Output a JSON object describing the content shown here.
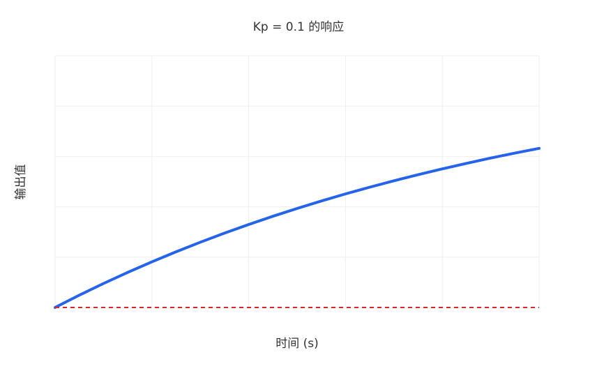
{
  "chart_data": {
    "type": "line",
    "title": "Kp = 0.1 的响应",
    "xlabel": "时间 (s)",
    "ylabel": "输出值",
    "xlim": [
      0,
      5
    ],
    "ylim": [
      0,
      0.5
    ],
    "grid": true,
    "series": [
      {
        "color": "#2563eb",
        "style": "solid",
        "x": [
          0,
          0.25,
          0.5,
          0.75,
          1.0,
          1.25,
          1.5,
          1.75,
          2.0,
          2.25,
          2.5,
          2.75,
          3.0,
          3.25,
          3.5,
          3.75,
          4.0,
          4.25,
          4.5,
          4.75,
          5.0
        ],
        "y": [
          0,
          0.0244,
          0.0476,
          0.0697,
          0.0906,
          0.1106,
          0.1296,
          0.1476,
          0.1648,
          0.1812,
          0.1967,
          0.2115,
          0.2256,
          0.2389,
          0.2517,
          0.2638,
          0.2753,
          0.2863,
          0.2968,
          0.3067,
          0.3161
        ]
      },
      {
        "color": "#dc2626",
        "style": "dashed",
        "x": [
          0,
          5
        ],
        "y": [
          0,
          0
        ]
      }
    ]
  }
}
